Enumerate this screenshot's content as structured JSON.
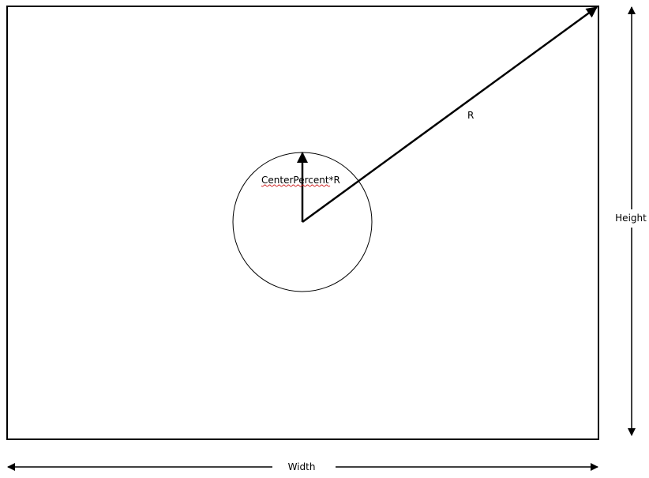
{
  "labels": {
    "radius": "R",
    "center_radius": "CenterPercent*R",
    "height": "Height",
    "width": "Width"
  },
  "colors": {
    "stroke": "#000000",
    "spellcheck_underline": "#d02020",
    "background": "#ffffff"
  }
}
